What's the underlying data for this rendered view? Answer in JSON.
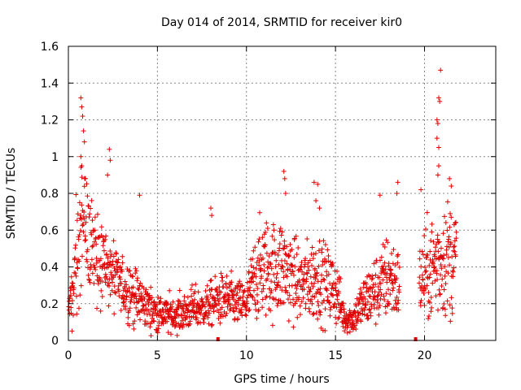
{
  "chart_data": {
    "type": "scatter",
    "title": "Day 014 of 2014, SRMTID for receiver kir0",
    "xlabel": "GPS time / hours",
    "ylabel": "SRMTID / TECUs",
    "xlim": [
      0,
      24
    ],
    "ylim": [
      0,
      1.6
    ],
    "xticks": [
      0,
      5,
      10,
      15,
      20
    ],
    "xtick_labels": [
      "0",
      "5",
      "10",
      "15",
      "20"
    ],
    "yticks": [
      0,
      0.2,
      0.4,
      0.6,
      0.8,
      1,
      1.2,
      1.4,
      1.6
    ],
    "ytick_labels": [
      "0",
      "0.2",
      "0.4",
      "0.6",
      "0.8",
      "1",
      "1.2",
      "1.4",
      "1.6"
    ],
    "grid": true,
    "marker": "+",
    "color": "#e00000",
    "gap_markers_x": [
      8.4,
      19.5
    ],
    "envelope": {
      "x": [
        0,
        0.3,
        0.6,
        0.8,
        1.0,
        1.5,
        2.0,
        2.5,
        3.0,
        3.5,
        4.0,
        4.5,
        5.0,
        5.5,
        6.0,
        6.5,
        7.0,
        7.5,
        8.0,
        8.5,
        9.0,
        9.5,
        10.0,
        10.5,
        11.0,
        11.5,
        12.0,
        12.5,
        13.0,
        13.5,
        14.0,
        14.5,
        15.0,
        15.5,
        16.0,
        16.5,
        17.0,
        17.5,
        18.0,
        18.5,
        19.5,
        20.0,
        20.5,
        21.0,
        21.5,
        21.8
      ],
      "mean": [
        0.15,
        0.3,
        0.55,
        0.65,
        0.6,
        0.5,
        0.42,
        0.35,
        0.3,
        0.26,
        0.22,
        0.18,
        0.15,
        0.14,
        0.14,
        0.15,
        0.18,
        0.17,
        0.2,
        0.22,
        0.22,
        0.2,
        0.2,
        0.35,
        0.4,
        0.38,
        0.4,
        0.35,
        0.3,
        0.32,
        0.35,
        0.3,
        0.28,
        0.12,
        0.12,
        0.2,
        0.25,
        0.3,
        0.35,
        0.3,
        0.3,
        0.35,
        0.4,
        0.45,
        0.45,
        0.45
      ],
      "spread": [
        0.08,
        0.12,
        0.2,
        0.22,
        0.2,
        0.15,
        0.12,
        0.1,
        0.09,
        0.08,
        0.07,
        0.06,
        0.05,
        0.05,
        0.05,
        0.05,
        0.06,
        0.05,
        0.06,
        0.07,
        0.07,
        0.06,
        0.07,
        0.12,
        0.14,
        0.13,
        0.14,
        0.12,
        0.1,
        0.11,
        0.12,
        0.1,
        0.1,
        0.04,
        0.04,
        0.07,
        0.09,
        0.1,
        0.12,
        0.1,
        0.1,
        0.12,
        0.15,
        0.16,
        0.16,
        0.15
      ]
    },
    "notable_peaks": [
      {
        "x": 0.7,
        "y": 1.32
      },
      {
        "x": 0.75,
        "y": 1.27
      },
      {
        "x": 0.8,
        "y": 1.22
      },
      {
        "x": 0.85,
        "y": 1.14
      },
      {
        "x": 0.9,
        "y": 1.08
      },
      {
        "x": 0.7,
        "y": 1.0
      },
      {
        "x": 0.75,
        "y": 0.95
      },
      {
        "x": 2.3,
        "y": 1.04
      },
      {
        "x": 2.35,
        "y": 0.98
      },
      {
        "x": 2.2,
        "y": 0.9
      },
      {
        "x": 4.0,
        "y": 0.79
      },
      {
        "x": 8.0,
        "y": 0.72
      },
      {
        "x": 8.05,
        "y": 0.68
      },
      {
        "x": 12.1,
        "y": 0.92
      },
      {
        "x": 12.15,
        "y": 0.88
      },
      {
        "x": 12.2,
        "y": 0.8
      },
      {
        "x": 13.8,
        "y": 0.86
      },
      {
        "x": 14.0,
        "y": 0.85
      },
      {
        "x": 13.9,
        "y": 0.76
      },
      {
        "x": 14.1,
        "y": 0.72
      },
      {
        "x": 17.5,
        "y": 0.79
      },
      {
        "x": 18.5,
        "y": 0.86
      },
      {
        "x": 18.45,
        "y": 0.8
      },
      {
        "x": 19.8,
        "y": 0.82
      },
      {
        "x": 20.8,
        "y": 1.32
      },
      {
        "x": 20.85,
        "y": 1.3
      },
      {
        "x": 20.9,
        "y": 1.47
      },
      {
        "x": 20.7,
        "y": 1.2
      },
      {
        "x": 20.75,
        "y": 1.18
      },
      {
        "x": 20.7,
        "y": 1.1
      },
      {
        "x": 20.8,
        "y": 1.05
      },
      {
        "x": 20.8,
        "y": 0.95
      },
      {
        "x": 20.75,
        "y": 0.9
      },
      {
        "x": 21.4,
        "y": 0.88
      },
      {
        "x": 21.5,
        "y": 0.84
      }
    ]
  }
}
